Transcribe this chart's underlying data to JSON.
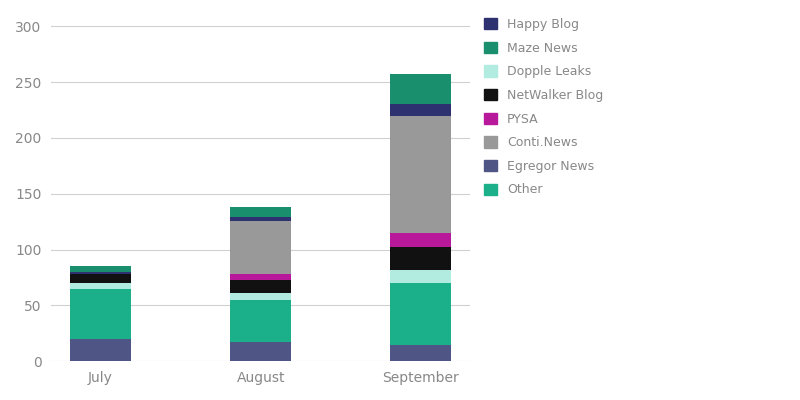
{
  "categories": [
    "July",
    "August",
    "September"
  ],
  "series": [
    {
      "label": "Egregor News",
      "color": "#4f5585",
      "values": [
        20,
        17,
        15
      ]
    },
    {
      "label": "Other",
      "color": "#1cb08a",
      "values": [
        45,
        38,
        55
      ]
    },
    {
      "label": "Dopple Leaks",
      "color": "#b2ece1",
      "values": [
        5,
        6,
        12
      ]
    },
    {
      "label": "NetWalker Blog",
      "color": "#111111",
      "values": [
        8,
        12,
        20
      ]
    },
    {
      "label": "PYSA",
      "color": "#b8189a",
      "values": [
        0,
        5,
        13
      ]
    },
    {
      "label": "Conti.News",
      "color": "#999999",
      "values": [
        0,
        48,
        105
      ]
    },
    {
      "label": "Happy Blog",
      "color": "#2e3170",
      "values": [
        2,
        3,
        10
      ]
    },
    {
      "label": "Maze News",
      "color": "#1a8f6e",
      "values": [
        5,
        9,
        27
      ]
    }
  ],
  "legend_order": [
    "Happy Blog",
    "Maze News",
    "Dopple Leaks",
    "NetWalker Blog",
    "PYSA",
    "Conti.News",
    "Egregor News",
    "Other"
  ],
  "legend_colors": {
    "Happy Blog": "#2e3170",
    "Maze News": "#1a8f6e",
    "Dopple Leaks": "#b2ece1",
    "NetWalker Blog": "#111111",
    "PYSA": "#b8189a",
    "Conti.News": "#999999",
    "Egregor News": "#4f5585",
    "Other": "#1cb08a"
  },
  "ylim": [
    0,
    310
  ],
  "yticks": [
    0,
    50,
    100,
    150,
    200,
    250,
    300
  ],
  "background_color": "#ffffff",
  "grid_color": "#d0d0d0",
  "bar_width": 0.38
}
